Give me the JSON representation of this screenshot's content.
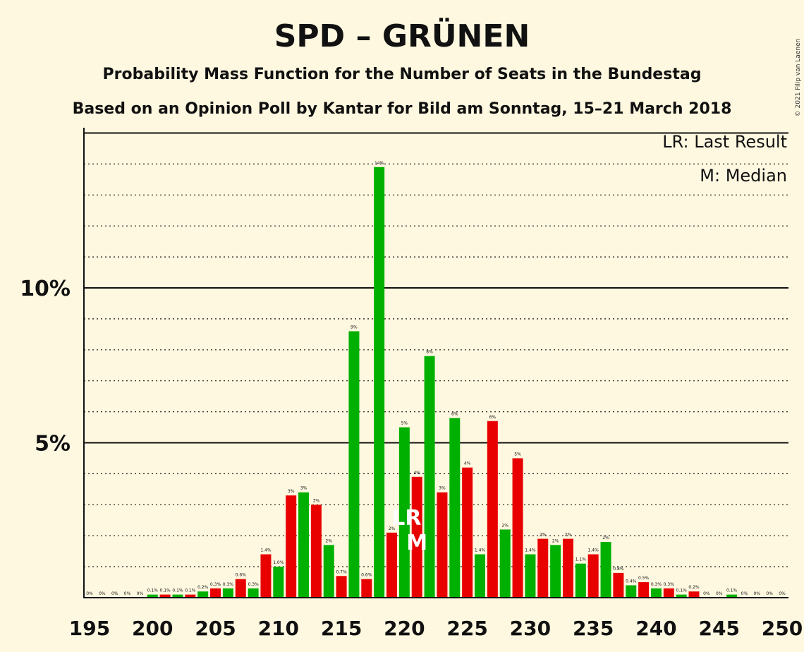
{
  "title": "SPD – GRÜNEN",
  "subtitle1": "Probability Mass Function for the Number of Seats in the Bundestag",
  "subtitle2": "Based on an Opinion Poll by Kantar for Bild am Sonntag, 15–21 March 2018",
  "legend": {
    "lr": "LR: Last Result",
    "m": "M: Median"
  },
  "copyright": "© 2021 Filip van Laenen",
  "colors": {
    "background": "#fff8e0",
    "odd": "#e80000",
    "even": "#00b000",
    "text": "#111111"
  },
  "chart_data": {
    "type": "bar",
    "x": [
      195,
      196,
      197,
      198,
      199,
      200,
      201,
      202,
      203,
      204,
      205,
      206,
      207,
      208,
      209,
      210,
      211,
      212,
      213,
      214,
      215,
      216,
      217,
      218,
      219,
      220,
      221,
      222,
      223,
      224,
      225,
      226,
      227,
      228,
      229,
      230,
      231,
      232,
      233,
      234,
      235,
      236,
      237,
      238,
      239,
      240,
      241,
      242,
      243,
      244,
      245,
      246,
      247,
      248,
      249,
      250
    ],
    "values": [
      0,
      0,
      0,
      0,
      0,
      0.1,
      0.1,
      0.1,
      0.1,
      0.2,
      0.3,
      0.3,
      0.6,
      0.3,
      1.4,
      1.0,
      3.3,
      3.4,
      3.0,
      1.7,
      0.7,
      8.6,
      0.6,
      13.9,
      2.1,
      5.5,
      3.9,
      7.8,
      3.4,
      5.8,
      4.2,
      1.4,
      5.7,
      2.2,
      4.5,
      1.4,
      1.9,
      1.7,
      1.9,
      1.1,
      1.4,
      1.8,
      0.8,
      0.4,
      0.5,
      0.3,
      0.3,
      0.1,
      0.2,
      0,
      0,
      0.1,
      0,
      0,
      0,
      0
    ],
    "labels": [
      "0%",
      "0%",
      "0%",
      "0%",
      "0%",
      "0.1%",
      "0.1%",
      "0.1%",
      "0.1%",
      "0.2%",
      "0.3%",
      "0.3%",
      "0.6%",
      "0.3%",
      "1.4%",
      "1.0%",
      "3%",
      "3%",
      "3%",
      "2%",
      "0.7%",
      "9%",
      "0.6%",
      "14%",
      "2%",
      "5%",
      "4%",
      "8%",
      "3%",
      "6%",
      "4%",
      "1.4%",
      "6%",
      "2%",
      "5%",
      "1.4%",
      "2%",
      "2%",
      "2%",
      "1.1%",
      "1.4%",
      "2%",
      "0.8%",
      "0.4%",
      "0.5%",
      "0.3%",
      "0.3%",
      "0.1%",
      "0.2%",
      "0%",
      "0%",
      "0.1%",
      "0%",
      "0%",
      "0%",
      "0%"
    ],
    "x_ticks": [
      "195",
      "200",
      "205",
      "210",
      "215",
      "220",
      "225",
      "230",
      "235",
      "240",
      "245",
      "250"
    ],
    "y_ticks": [
      "5%",
      "10%"
    ],
    "ylim": [
      0,
      15
    ],
    "last_result": 220,
    "median": 221,
    "last_result_label": "LR",
    "median_label": "M",
    "grid": true
  }
}
